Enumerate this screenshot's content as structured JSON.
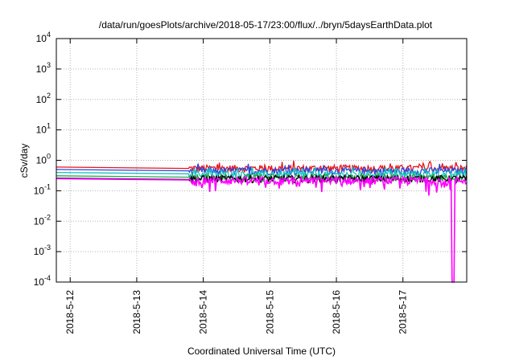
{
  "chart_data": {
    "type": "line",
    "title": "/data/run/goesPlots/archive/2018-05-17/23:00/flux/../bryn/5daysEarthData.plot",
    "xlabel": "Coordinated Universal Time (UTC)",
    "ylabel": "cSv/day",
    "yscale": "log",
    "ylim": [
      0.0001,
      10000
    ],
    "y_ticks": [
      {
        "exp": "-4",
        "value": 0.0001
      },
      {
        "exp": "-3",
        "value": 0.001
      },
      {
        "exp": "-2",
        "value": 0.01
      },
      {
        "exp": "-1",
        "value": 0.1
      },
      {
        "exp": "0",
        "value": 1
      },
      {
        "exp": "1",
        "value": 10
      },
      {
        "exp": "2",
        "value": 100
      },
      {
        "exp": "3",
        "value": 1000
      },
      {
        "exp": "4",
        "value": 10000
      }
    ],
    "xlim": [
      "2018-05-11T19:00",
      "2018-05-17T23:00"
    ],
    "x_ticks": [
      "2018-5-12",
      "2018-5-13",
      "2018-5-14",
      "2018-5-15",
      "2018-5-16",
      "2018-5-17"
    ],
    "grid": true,
    "series": [
      {
        "color": "#e8141c",
        "level": 0.55,
        "start": 0.6,
        "end": 0.48
      },
      {
        "color": "#2b46d8",
        "level": 0.45,
        "start": 0.5,
        "end": 0.42
      },
      {
        "color": "#16c2c2",
        "level": 0.35,
        "start": 0.4,
        "end": 0.33
      },
      {
        "color": "#1fa84a",
        "level": 0.28,
        "start": 0.31,
        "end": 0.27
      },
      {
        "color": "#000000",
        "level": 0.25,
        "start": 0.26,
        "end": 0.24
      },
      {
        "color": "#ff00ff",
        "level": 0.22,
        "start": 0.25,
        "end": 0.2,
        "dip": {
          "x": "2018-05-17T18:00",
          "y": 0.0001
        }
      }
    ]
  }
}
